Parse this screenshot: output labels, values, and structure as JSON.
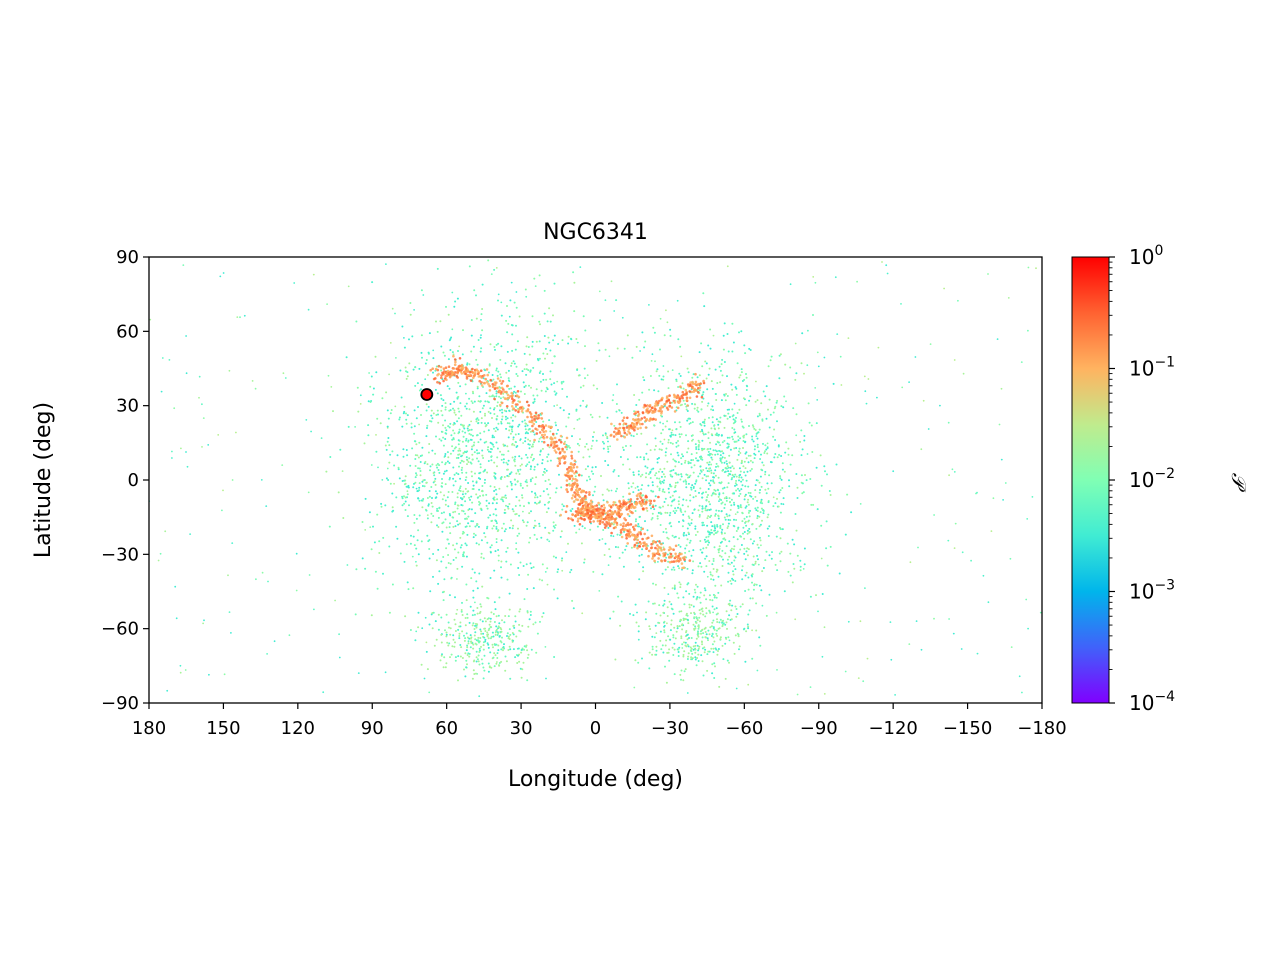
{
  "chart_data": {
    "type": "scatter",
    "title": "NGC6341",
    "xlabel": "Longitude (deg)",
    "ylabel": "Latitude (deg)",
    "xlim": [
      180,
      -180
    ],
    "ylim": [
      -90,
      90
    ],
    "x_ticks": [
      180,
      150,
      120,
      90,
      60,
      30,
      0,
      -30,
      -60,
      -90,
      -120,
      -150,
      -180
    ],
    "x_tick_labels": [
      "180",
      "150",
      "120",
      "90",
      "60",
      "30",
      "0",
      "−30",
      "−60",
      "−90",
      "−120",
      "−150",
      "−180"
    ],
    "y_ticks": [
      90,
      60,
      30,
      0,
      -30,
      -60,
      -90
    ],
    "y_tick_labels": [
      "90",
      "60",
      "30",
      "0",
      "−30",
      "−60",
      "−90"
    ],
    "grid": false,
    "colorbar": {
      "label": "𝒫",
      "scale": "log",
      "range": [
        0.0001,
        1
      ],
      "colormap": "rainbow",
      "tick_labels": [
        {
          "base": "10",
          "exp": "0"
        },
        {
          "base": "10",
          "exp": "−1"
        },
        {
          "base": "10",
          "exp": "−2"
        },
        {
          "base": "10",
          "exp": "−3"
        },
        {
          "base": "10",
          "exp": "−4"
        }
      ]
    },
    "series": [
      {
        "type": "density_scatter",
        "description_values": "stream stars colored by probability",
        "components": {
          "halo_background": {
            "lon_range": [
              180,
              -180
            ],
            "lat_range": [
              -88,
              88
            ]
          },
          "left_lobe": {
            "lon_center": 45,
            "lat_center": 10,
            "lon_spread": 22,
            "lat_spread": 28
          },
          "right_lobe": {
            "lon_center": -45,
            "lat_center": 0,
            "lon_spread": 20,
            "lat_spread": 26
          },
          "lower_left_tail": {
            "lon_center": 45,
            "lat_center": -65
          },
          "lower_right_tail": {
            "lon_center": -40,
            "lat_center": -62
          }
        },
        "dense_stream_tracks": [
          {
            "points": [
              [
                64,
                42
              ],
              [
                55,
                45
              ],
              [
                40,
                38
              ],
              [
                25,
                25
              ],
              [
                13,
                10
              ],
              [
                8,
                -3
              ],
              [
                2,
                -14
              ],
              [
                -10,
                -18
              ],
              [
                -22,
                -27
              ],
              [
                -35,
                -33
              ]
            ]
          },
          {
            "points": [
              [
                -8,
                18
              ],
              [
                -18,
                25
              ],
              [
                -30,
                32
              ],
              [
                -42,
                38
              ]
            ]
          },
          {
            "points": [
              [
                10,
                -14
              ],
              [
                0,
                -13
              ],
              [
                -10,
                -12
              ],
              [
                -22,
                -8
              ]
            ]
          }
        ]
      },
      {
        "type": "marker",
        "name": "cluster",
        "x": 68,
        "y": 34.5,
        "face_color": "#ff0000",
        "edge_color": "#000000"
      }
    ]
  }
}
